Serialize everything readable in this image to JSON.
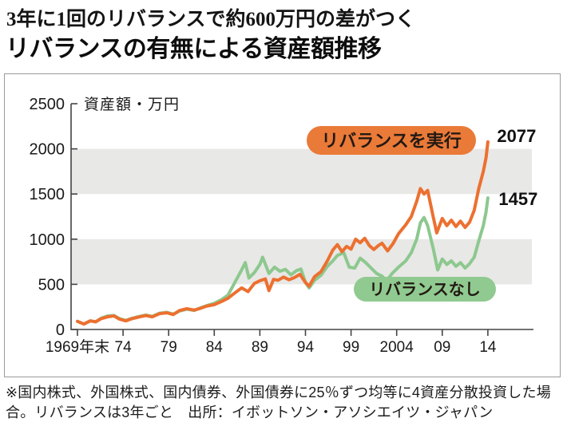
{
  "header": {
    "subtitle": "3年に1回のリバランスで約600万円の差がつく",
    "title": "リバランスの有無による資産額推移"
  },
  "footnote": {
    "line1": "※国内株式、外国株式、国内債券、外国債券に25％ずつ均等に4資産分散投資した場",
    "line2": "合。リバランスは3年ごと　出所：イボットソン・アソシエイツ・ジャパン"
  },
  "colors": {
    "rebalance_line": "#ec7030",
    "rebalance_badge": "#ea7a38",
    "no_rebalance_line": "#8dc88f",
    "no_rebalance_badge": "#90ca90",
    "stripe": "#e8e8e6",
    "axis": "#444444",
    "text": "#1a1a1a",
    "badge_text": "#231913"
  },
  "chart_data": {
    "type": "line",
    "title": "リバランスの有無による資産額推移",
    "ylabel": "資産額・万円",
    "xlabel": "",
    "ylim": [
      0,
      2500
    ],
    "xlim": [
      1969,
      2014
    ],
    "grid": "alternating gray bands",
    "stripes": [
      [
        500,
        1000
      ],
      [
        1500,
        2000
      ]
    ],
    "y_ticks": [
      0,
      500,
      1000,
      1500,
      2000,
      2500
    ],
    "x_ticks": [
      {
        "label": "1969年末",
        "year": 1969
      },
      {
        "label": "74",
        "year": 1974
      },
      {
        "label": "79",
        "year": 1979
      },
      {
        "label": "84",
        "year": 1984
      },
      {
        "label": "89",
        "year": 1989
      },
      {
        "label": "94",
        "year": 1994
      },
      {
        "label": "99",
        "year": 1999
      },
      {
        "label": "2004",
        "year": 2004
      },
      {
        "label": "09",
        "year": 2009
      },
      {
        "label": "14",
        "year": 2014
      }
    ],
    "series": [
      {
        "name": "リバランスなし",
        "end_label": "1457",
        "final_value": 1457,
        "points": [
          [
            1969,
            90
          ],
          [
            1969.7,
            60
          ],
          [
            1970.4,
            95
          ],
          [
            1971,
            85
          ],
          [
            1971.6,
            125
          ],
          [
            1972.3,
            150
          ],
          [
            1973,
            155
          ],
          [
            1973.6,
            120
          ],
          [
            1974.3,
            100
          ],
          [
            1975,
            125
          ],
          [
            1975.8,
            145
          ],
          [
            1976.5,
            160
          ],
          [
            1977.2,
            145
          ],
          [
            1978,
            180
          ],
          [
            1978.8,
            190
          ],
          [
            1979.5,
            170
          ],
          [
            1980.2,
            205
          ],
          [
            1981,
            225
          ],
          [
            1981.8,
            210
          ],
          [
            1982.5,
            240
          ],
          [
            1983.2,
            265
          ],
          [
            1984,
            290
          ],
          [
            1984.8,
            330
          ],
          [
            1985.5,
            380
          ],
          [
            1986.2,
            510
          ],
          [
            1987,
            660
          ],
          [
            1987.4,
            740
          ],
          [
            1987.8,
            570
          ],
          [
            1988.4,
            630
          ],
          [
            1989,
            720
          ],
          [
            1989.3,
            800
          ],
          [
            1990,
            620
          ],
          [
            1990.6,
            690
          ],
          [
            1991.2,
            645
          ],
          [
            1991.8,
            665
          ],
          [
            1992.4,
            605
          ],
          [
            1993,
            650
          ],
          [
            1993.5,
            670
          ],
          [
            1994,
            520
          ],
          [
            1994.4,
            460
          ],
          [
            1995,
            545
          ],
          [
            1995.7,
            600
          ],
          [
            1996.4,
            700
          ],
          [
            1997,
            760
          ],
          [
            1997.5,
            820
          ],
          [
            1998.2,
            850
          ],
          [
            1998.8,
            690
          ],
          [
            1999.4,
            680
          ],
          [
            2000,
            790
          ],
          [
            2000.6,
            740
          ],
          [
            2001.2,
            680
          ],
          [
            2001.8,
            620
          ],
          [
            2002.4,
            590
          ],
          [
            2002.9,
            540
          ],
          [
            2003.5,
            620
          ],
          [
            2004.2,
            690
          ],
          [
            2005,
            760
          ],
          [
            2005.6,
            850
          ],
          [
            2006.2,
            1000
          ],
          [
            2006.6,
            1180
          ],
          [
            2007,
            1240
          ],
          [
            2007.4,
            1150
          ],
          [
            2008,
            900
          ],
          [
            2008.5,
            660
          ],
          [
            2009,
            780
          ],
          [
            2009.5,
            720
          ],
          [
            2010,
            760
          ],
          [
            2010.5,
            700
          ],
          [
            2011,
            740
          ],
          [
            2011.5,
            680
          ],
          [
            2012,
            730
          ],
          [
            2012.5,
            800
          ],
          [
            2013,
            980
          ],
          [
            2013.5,
            1150
          ],
          [
            2013.8,
            1300
          ],
          [
            2014,
            1457
          ]
        ]
      },
      {
        "name": "リバランスを実行",
        "end_label": "2077",
        "final_value": 2077,
        "points": [
          [
            1969,
            90
          ],
          [
            1969.7,
            60
          ],
          [
            1970.4,
            95
          ],
          [
            1971,
            85
          ],
          [
            1971.6,
            120
          ],
          [
            1972.3,
            140
          ],
          [
            1973,
            150
          ],
          [
            1973.6,
            115
          ],
          [
            1974.3,
            95
          ],
          [
            1975,
            120
          ],
          [
            1975.8,
            140
          ],
          [
            1976.5,
            155
          ],
          [
            1977.2,
            140
          ],
          [
            1978,
            175
          ],
          [
            1978.8,
            185
          ],
          [
            1979.5,
            165
          ],
          [
            1980.2,
            210
          ],
          [
            1981,
            230
          ],
          [
            1981.8,
            215
          ],
          [
            1982.5,
            235
          ],
          [
            1983.2,
            260
          ],
          [
            1984,
            275
          ],
          [
            1984.8,
            310
          ],
          [
            1985.5,
            345
          ],
          [
            1986.2,
            400
          ],
          [
            1987,
            460
          ],
          [
            1987.7,
            420
          ],
          [
            1988.4,
            510
          ],
          [
            1989,
            540
          ],
          [
            1989.6,
            560
          ],
          [
            1990,
            430
          ],
          [
            1990.5,
            555
          ],
          [
            1991,
            545
          ],
          [
            1991.6,
            580
          ],
          [
            1992.2,
            550
          ],
          [
            1992.8,
            575
          ],
          [
            1993.4,
            610
          ],
          [
            1994,
            520
          ],
          [
            1994.4,
            480
          ],
          [
            1995,
            585
          ],
          [
            1995.7,
            640
          ],
          [
            1996.4,
            760
          ],
          [
            1997,
            880
          ],
          [
            1997.5,
            940
          ],
          [
            1998,
            860
          ],
          [
            1998.5,
            920
          ],
          [
            1999,
            890
          ],
          [
            1999.5,
            1000
          ],
          [
            2000,
            960
          ],
          [
            2000.5,
            1010
          ],
          [
            2001,
            930
          ],
          [
            2001.5,
            885
          ],
          [
            2002,
            930
          ],
          [
            2002.4,
            955
          ],
          [
            2003,
            870
          ],
          [
            2003.6,
            950
          ],
          [
            2004.2,
            1060
          ],
          [
            2005,
            1160
          ],
          [
            2005.6,
            1250
          ],
          [
            2006.2,
            1420
          ],
          [
            2006.6,
            1560
          ],
          [
            2007,
            1500
          ],
          [
            2007.4,
            1540
          ],
          [
            2008,
            1250
          ],
          [
            2008.4,
            1070
          ],
          [
            2009,
            1230
          ],
          [
            2009.5,
            1150
          ],
          [
            2010,
            1210
          ],
          [
            2010.5,
            1140
          ],
          [
            2011,
            1200
          ],
          [
            2011.5,
            1130
          ],
          [
            2012,
            1190
          ],
          [
            2012.5,
            1320
          ],
          [
            2013,
            1560
          ],
          [
            2013.5,
            1750
          ],
          [
            2013.8,
            1900
          ],
          [
            2014,
            2077
          ]
        ]
      }
    ],
    "legend_position": "badges on plot"
  }
}
